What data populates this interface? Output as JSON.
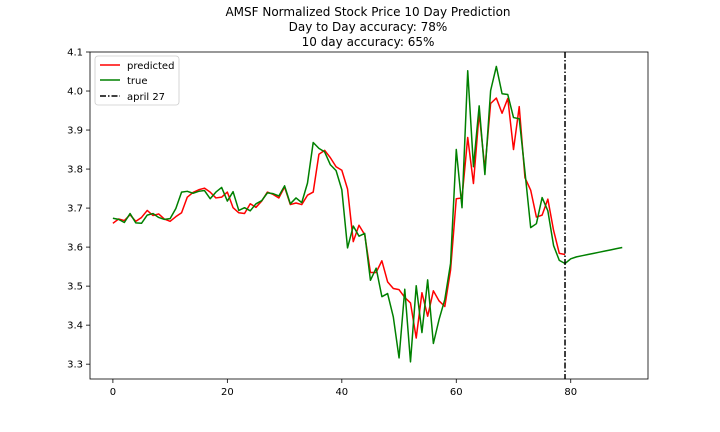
{
  "chart_data": {
    "type": "line",
    "title_lines": [
      "AMSF Normalized Stock Price 10 Day Prediction",
      "Day to Day accuracy: 78%",
      "10 day accuracy: 65%"
    ],
    "xlabel": "",
    "ylabel": "",
    "xlim": [
      -4,
      93.5
    ],
    "ylim": [
      3.262,
      4.1
    ],
    "x_ticks": [
      0,
      20,
      40,
      60,
      80
    ],
    "y_ticks": [
      3.3,
      3.4,
      3.5,
      3.6,
      3.7,
      3.8,
      3.9,
      4.0,
      4.1
    ],
    "grid": false,
    "legend_position": "top-left",
    "legend": [
      "predicted",
      "true",
      "april 27"
    ],
    "series": [
      {
        "name": "predicted",
        "color": "#ff0000",
        "x_start": 0,
        "values": [
          3.661,
          3.672,
          3.668,
          3.683,
          3.666,
          3.676,
          3.694,
          3.681,
          3.685,
          3.672,
          3.666,
          3.678,
          3.688,
          3.728,
          3.74,
          3.747,
          3.751,
          3.741,
          3.726,
          3.728,
          3.741,
          3.701,
          3.688,
          3.686,
          3.711,
          3.702,
          3.718,
          3.741,
          3.735,
          3.726,
          3.754,
          3.709,
          3.713,
          3.709,
          3.733,
          3.741,
          3.838,
          3.848,
          3.829,
          3.806,
          3.797,
          3.749,
          3.614,
          3.656,
          3.632,
          3.535,
          3.535,
          3.565,
          3.511,
          3.494,
          3.491,
          3.471,
          3.457,
          3.367,
          3.483,
          3.423,
          3.488,
          3.462,
          3.448,
          3.541,
          3.724,
          3.726,
          3.881,
          3.763,
          3.944,
          3.8,
          3.968,
          3.982,
          3.943,
          3.981,
          3.85,
          3.96,
          3.778,
          3.746,
          3.677,
          3.682,
          3.723,
          3.643,
          3.584,
          3.581
        ]
      },
      {
        "name": "true",
        "color": "#008000",
        "x_start": 0,
        "values": [
          3.674,
          3.671,
          3.663,
          3.686,
          3.662,
          3.661,
          3.682,
          3.686,
          3.676,
          3.671,
          3.673,
          3.699,
          3.741,
          3.743,
          3.738,
          3.743,
          3.745,
          3.724,
          3.741,
          3.753,
          3.718,
          3.742,
          3.694,
          3.701,
          3.693,
          3.711,
          3.719,
          3.739,
          3.737,
          3.731,
          3.757,
          3.711,
          3.726,
          3.714,
          3.764,
          3.868,
          3.853,
          3.844,
          3.811,
          3.796,
          3.747,
          3.598,
          3.654,
          3.628,
          3.635,
          3.515,
          3.546,
          3.473,
          3.481,
          3.421,
          3.316,
          3.492,
          3.306,
          3.501,
          3.381,
          3.516,
          3.353,
          3.415,
          3.466,
          3.558,
          3.85,
          3.701,
          4.052,
          3.806,
          3.962,
          3.786,
          4.001,
          4.063,
          3.993,
          3.991,
          3.932,
          3.929,
          3.793,
          3.65,
          3.66,
          3.727,
          3.693,
          3.604,
          3.566,
          3.558,
          3.57,
          3.575,
          3.578,
          3.581,
          3.584,
          3.587,
          3.59,
          3.593,
          3.596,
          3.599
        ]
      }
    ],
    "vline": {
      "name": "april 27",
      "x": 79,
      "color": "#000000",
      "style": "dashdot"
    }
  }
}
